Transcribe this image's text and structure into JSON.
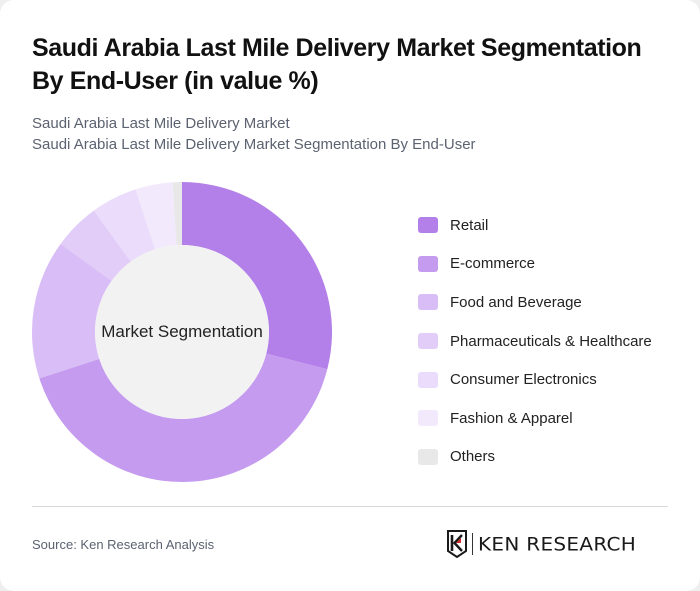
{
  "header": {
    "title": "Saudi Arabia Last Mile Delivery Market Segmentation By End-User (in value %)",
    "subtitle_line1": "Saudi Arabia Last Mile Delivery Market",
    "subtitle_line2": "Saudi Arabia Last Mile Delivery Market Segmentation By End-User"
  },
  "chart": {
    "center_label": "Market Segmentation"
  },
  "legend": {
    "items": [
      {
        "label": "Retail",
        "color": "#b37fe8"
      },
      {
        "label": "E-commerce",
        "color": "#c49bef"
      },
      {
        "label": "Food and Beverage",
        "color": "#d9bdf6"
      },
      {
        "label": "Pharmaceuticals & Healthcare",
        "color": "#e2cdf8"
      },
      {
        "label": "Consumer Electronics",
        "color": "#eadcfa"
      },
      {
        "label": "Fashion & Apparel",
        "color": "#f2eafc"
      },
      {
        "label": "Others",
        "color": "#e8e8e8"
      }
    ]
  },
  "footer": {
    "source": "Source: Ken Research Analysis",
    "logo_text": "KEN RESEARCH",
    "logo_icon": "ken-research-k-shield-icon"
  },
  "chart_data": {
    "type": "pie",
    "variant": "donut",
    "title": "Saudi Arabia Last Mile Delivery Market Segmentation By End-User (in value %)",
    "subtitle": "Saudi Arabia Last Mile Delivery Market Segmentation By End-User",
    "center_label": "Market Segmentation",
    "categories": [
      "Retail",
      "E-commerce",
      "Food and Beverage",
      "Pharmaceuticals & Healthcare",
      "Consumer Electronics",
      "Fashion & Apparel",
      "Others"
    ],
    "values": [
      29,
      41,
      15,
      5,
      5,
      4,
      1
    ],
    "unit": "%",
    "colors": [
      "#b37fe8",
      "#c49bef",
      "#d9bdf6",
      "#e2cdf8",
      "#eadcfa",
      "#f2eafc",
      "#e8e8e8"
    ],
    "start_angle": "top (12 o'clock), clockwise",
    "legend_position": "right",
    "data_labels": false
  }
}
